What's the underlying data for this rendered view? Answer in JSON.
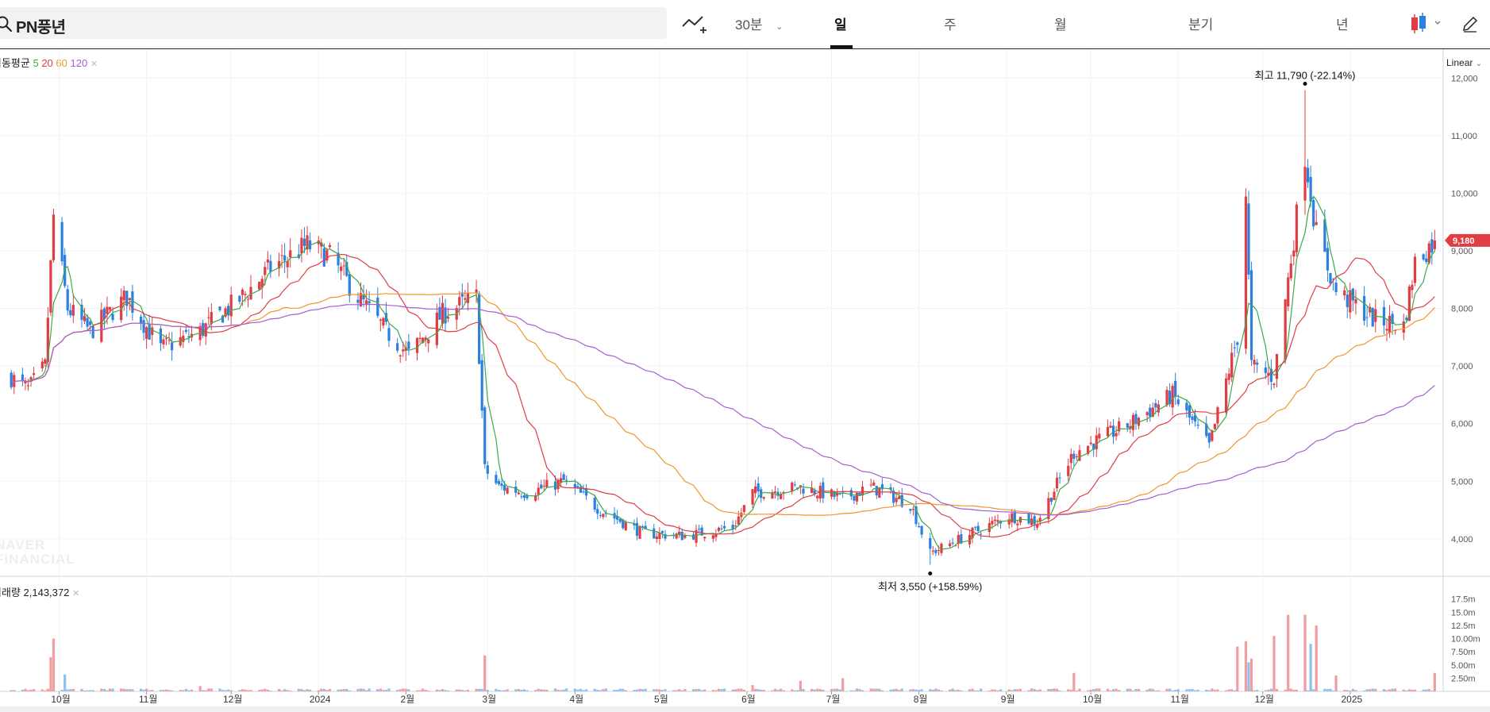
{
  "header": {
    "stock_name": "PN풍년",
    "interval_label": "30분",
    "periods": [
      "일",
      "주",
      "월",
      "분기",
      "년"
    ],
    "active_period": "일"
  },
  "toolbar": {
    "scale_label": "Linear"
  },
  "legend": {
    "ma_title": "이동평균",
    "ma_periods": [
      "5",
      "20",
      "60",
      "120"
    ],
    "ma_colors": [
      "#3fa84a",
      "#e03d45",
      "#f0962c",
      "#a45fd0"
    ],
    "volume_label": "거래량",
    "volume_value": "2,143,372"
  },
  "colors": {
    "up": "#e03d45",
    "down": "#2b80e0",
    "accent": "#e03d45"
  },
  "watermark": [
    "NAVER",
    "FINANCIAL"
  ],
  "chart_data": {
    "type": "candlestick",
    "y_axis": {
      "ticks": [
        4000,
        5000,
        6000,
        7000,
        8000,
        9000,
        10000,
        11000,
        12000
      ],
      "tick_labels": [
        "4,000",
        "5,000",
        "6,000",
        "7,000",
        "8,000",
        "9,000",
        "10,000",
        "11,000",
        "12,000"
      ],
      "range": [
        3350,
        12500
      ]
    },
    "x_axis": {
      "labels": [
        "10월",
        "11월",
        "12월",
        "2024",
        "2월",
        "3월",
        "4월",
        "5월",
        "6월",
        "7월",
        "8월",
        "9월",
        "10월",
        "11월",
        "12월",
        "2025"
      ]
    },
    "current_price": 9180,
    "current_price_label": "9,180",
    "high": {
      "label": "최고",
      "value": "11,790",
      "pct": "(-22.14%)"
    },
    "low": {
      "label": "최저",
      "value": "3,550",
      "pct": "(+158.59%)"
    },
    "price_path": [
      [
        "2023-09-14",
        6800
      ],
      [
        "2023-09-20",
        6600
      ],
      [
        "2023-09-26",
        7000
      ],
      [
        "2023-09-29",
        9600
      ],
      [
        "2023-10-04",
        8000
      ],
      [
        "2023-10-12",
        7600
      ],
      [
        "2023-10-25",
        8200
      ],
      [
        "2023-11-06",
        7300
      ],
      [
        "2023-11-20",
        7600
      ],
      [
        "2023-12-05",
        8200
      ],
      [
        "2023-12-15",
        8700
      ],
      [
        "2023-12-28",
        9100
      ],
      [
        "2024-01-05",
        8900
      ],
      [
        "2024-01-15",
        8200
      ],
      [
        "2024-01-25",
        7600
      ],
      [
        "2024-02-02",
        7200
      ],
      [
        "2024-02-14",
        7900
      ],
      [
        "2024-02-26",
        8200
      ],
      [
        "2024-02-29",
        5200
      ],
      [
        "2024-03-05",
        4900
      ],
      [
        "2024-03-15",
        4800
      ],
      [
        "2024-03-28",
        5000
      ],
      [
        "2024-04-10",
        4500
      ],
      [
        "2024-04-25",
        4100
      ],
      [
        "2024-05-10",
        4050
      ],
      [
        "2024-05-27",
        4200
      ],
      [
        "2024-06-03",
        4800
      ],
      [
        "2024-06-20",
        4900
      ],
      [
        "2024-07-05",
        4700
      ],
      [
        "2024-07-15",
        4900
      ],
      [
        "2024-07-29",
        4600
      ],
      [
        "2024-08-05",
        3750
      ],
      [
        "2024-08-20",
        4100
      ],
      [
        "2024-09-02",
        4400
      ],
      [
        "2024-09-12",
        4300
      ],
      [
        "2024-09-25",
        5500
      ],
      [
        "2024-10-15",
        6000
      ],
      [
        "2024-10-30",
        6500
      ],
      [
        "2024-11-12",
        5600
      ],
      [
        "2024-11-22",
        7500
      ],
      [
        "2024-11-25",
        10000
      ],
      [
        "2024-11-27",
        7000
      ],
      [
        "2024-12-05",
        6800
      ],
      [
        "2024-12-10",
        8500
      ],
      [
        "2024-12-16",
        10700
      ],
      [
        "2024-12-20",
        9300
      ],
      [
        "2024-12-27",
        8300
      ],
      [
        "2025-01-10",
        7800
      ],
      [
        "2025-01-20",
        7700
      ],
      [
        "2025-01-24",
        8800
      ],
      [
        "2025-01-31",
        9180
      ]
    ],
    "volume_axis": {
      "tick_labels": [
        "2.50m",
        "5.00m",
        "7.50m",
        "10.00m",
        "12.5m",
        "15.0m",
        "17.5m"
      ],
      "ticks": [
        2.5,
        5,
        7.5,
        10,
        12.5,
        15,
        17.5
      ],
      "range": [
        0,
        20
      ]
    },
    "volume_spikes": [
      [
        "2023-09-29",
        10.0,
        "up"
      ],
      [
        "2023-09-28",
        6.5,
        "up"
      ],
      [
        "2023-10-03",
        3.2,
        "down"
      ],
      [
        "2023-11-20",
        1.0,
        "up"
      ],
      [
        "2024-02-29",
        6.8,
        "up"
      ],
      [
        "2024-06-03",
        1.2,
        "up"
      ],
      [
        "2024-06-20",
        2.0,
        "up"
      ],
      [
        "2024-07-05",
        2.5,
        "up"
      ],
      [
        "2024-09-25",
        3.5,
        "up"
      ],
      [
        "2024-11-22",
        8.5,
        "up"
      ],
      [
        "2024-11-25",
        9.5,
        "up"
      ],
      [
        "2024-11-26",
        5.5,
        "down"
      ],
      [
        "2024-11-27",
        6.2,
        "up"
      ],
      [
        "2024-12-05",
        10.5,
        "up"
      ],
      [
        "2024-12-10",
        14.5,
        "up"
      ],
      [
        "2024-12-16",
        14.5,
        "up"
      ],
      [
        "2024-12-18",
        9.0,
        "down"
      ],
      [
        "2024-12-20",
        12.5,
        "up"
      ],
      [
        "2024-12-27",
        3.0,
        "up"
      ],
      [
        "2025-01-31",
        3.5,
        "up"
      ]
    ]
  }
}
